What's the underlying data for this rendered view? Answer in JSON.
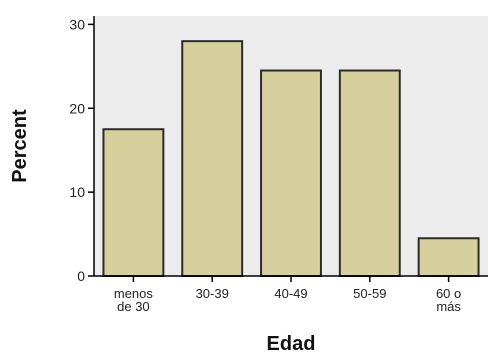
{
  "chart_data": {
    "type": "bar",
    "categories": [
      [
        "menos",
        "de 30"
      ],
      [
        "30-39"
      ],
      [
        "40-49"
      ],
      [
        "50-59"
      ],
      [
        "60 o",
        "más"
      ]
    ],
    "values": [
      17.5,
      28.0,
      24.5,
      24.5,
      4.5
    ],
    "xlabel": "Edad",
    "ylabel": "Percent",
    "ylim": [
      0,
      31
    ],
    "yticks": [
      0,
      10,
      20,
      30
    ],
    "grid": false,
    "colors": {
      "bar_fill": "#d6d09c",
      "bar_stroke": "#2b2b2b",
      "plot_bg": "#ececec",
      "axis": "#000000"
    }
  }
}
